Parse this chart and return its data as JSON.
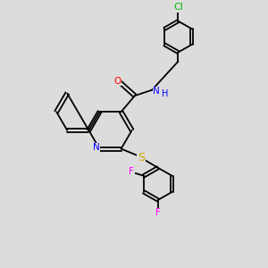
{
  "background_color": "#dcdcdc",
  "bond_color": "#000000",
  "atom_colors": {
    "N": "#0000ff",
    "O": "#ff0000",
    "S": "#ccaa00",
    "F": "#ff00ff",
    "Cl": "#00bb00",
    "C": "#000000",
    "H": "#0000ff"
  },
  "font_size": 7.5,
  "fig_size": [
    3.0,
    3.0
  ],
  "dpi": 100,
  "lw": 1.3,
  "do": 0.07
}
